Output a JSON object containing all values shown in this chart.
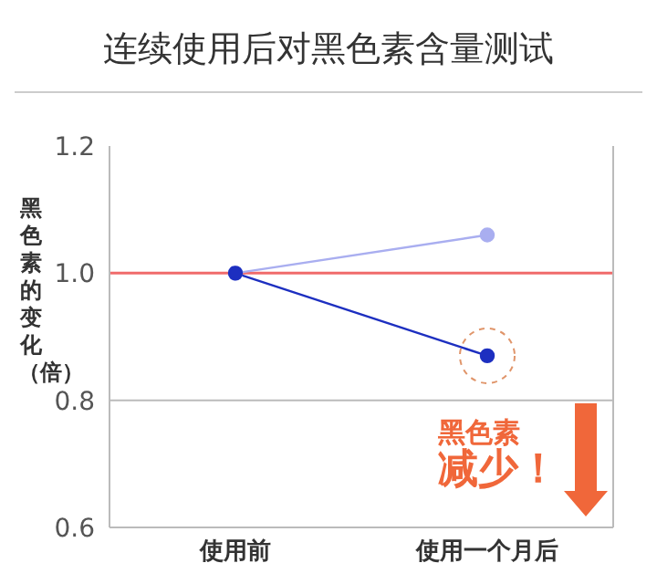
{
  "chart_data": {
    "type": "line",
    "title": "连续使用后对黑色素含量测试",
    "ylabel": "黑色素的变化（倍）",
    "categories": [
      "使用前",
      "使用一个月后"
    ],
    "series": [
      {
        "color": "#a9aef0",
        "values": [
          1.0,
          1.06
        ]
      },
      {
        "color": "#1d2fc0",
        "values": [
          1.0,
          0.87
        ]
      }
    ],
    "ylim": [
      0.6,
      1.2
    ],
    "yticks": [
      {
        "value": 0.6,
        "label": "0.6"
      },
      {
        "value": 0.8,
        "label": "0.8"
      },
      {
        "value": 1.0,
        "label": "1.0"
      },
      {
        "value": 1.2,
        "label": "1.2"
      }
    ],
    "marker": "circle",
    "line_style": "solid",
    "ref_lines": [
      {
        "axis": "y",
        "value": 0.8,
        "color": "#bbbbbb"
      },
      {
        "axis": "y",
        "value": 1.0,
        "color": "#f06b6b"
      }
    ],
    "annotations": [
      "黑色素",
      "减少！"
    ]
  }
}
